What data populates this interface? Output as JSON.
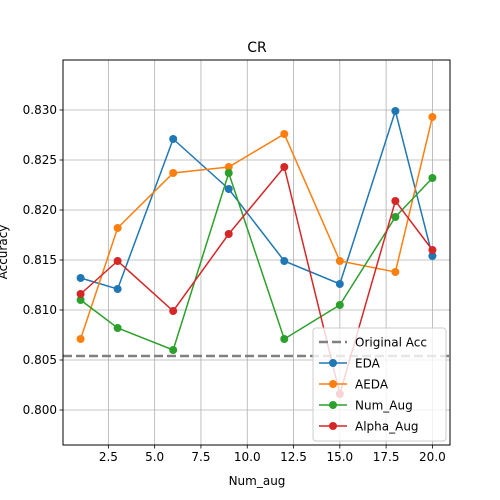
{
  "chart_data": {
    "type": "line",
    "title": "CR",
    "xlabel": "Num_aug",
    "ylabel": "Accuracy",
    "xlim": [
      0.05,
      20.95
    ],
    "ylim": [
      0.7965,
      0.835
    ],
    "xticks": [
      2.5,
      5.0,
      7.5,
      10.0,
      12.5,
      15.0,
      17.5,
      20.0
    ],
    "xtick_labels": [
      "2.5",
      "5.0",
      "7.5",
      "10.0",
      "12.5",
      "15.0",
      "17.5",
      "20.0"
    ],
    "yticks": [
      0.8,
      0.805,
      0.81,
      0.815,
      0.82,
      0.825,
      0.83
    ],
    "ytick_labels": [
      "0.800",
      "0.805",
      "0.810",
      "0.815",
      "0.820",
      "0.825",
      "0.830"
    ],
    "grid": true,
    "legend_position": "lower-right",
    "x": [
      1,
      3,
      6,
      9,
      12,
      15,
      18,
      20
    ],
    "reference_line": {
      "name": "Original Acc",
      "value": 0.8054,
      "color": "#808080"
    },
    "series": [
      {
        "name": "EDA",
        "color": "#1f77b4",
        "values": [
          0.8132,
          0.8121,
          0.8271,
          0.8221,
          0.8149,
          0.8126,
          0.8299,
          0.8154
        ]
      },
      {
        "name": "AEDA",
        "color": "#ff7f0e",
        "values": [
          0.8071,
          0.8182,
          0.8237,
          0.8243,
          0.8276,
          0.8149,
          0.8138,
          0.8293
        ]
      },
      {
        "name": "Num_Aug",
        "color": "#2ca02c",
        "values": [
          0.811,
          0.8082,
          0.806,
          0.8237,
          0.8071,
          0.8105,
          0.8193,
          0.8232
        ]
      },
      {
        "name": "Alpha_Aug",
        "color": "#d62728",
        "values": [
          0.8116,
          0.8149,
          0.8099,
          0.8176,
          0.8243,
          0.8016,
          0.8209,
          0.816
        ]
      }
    ]
  }
}
